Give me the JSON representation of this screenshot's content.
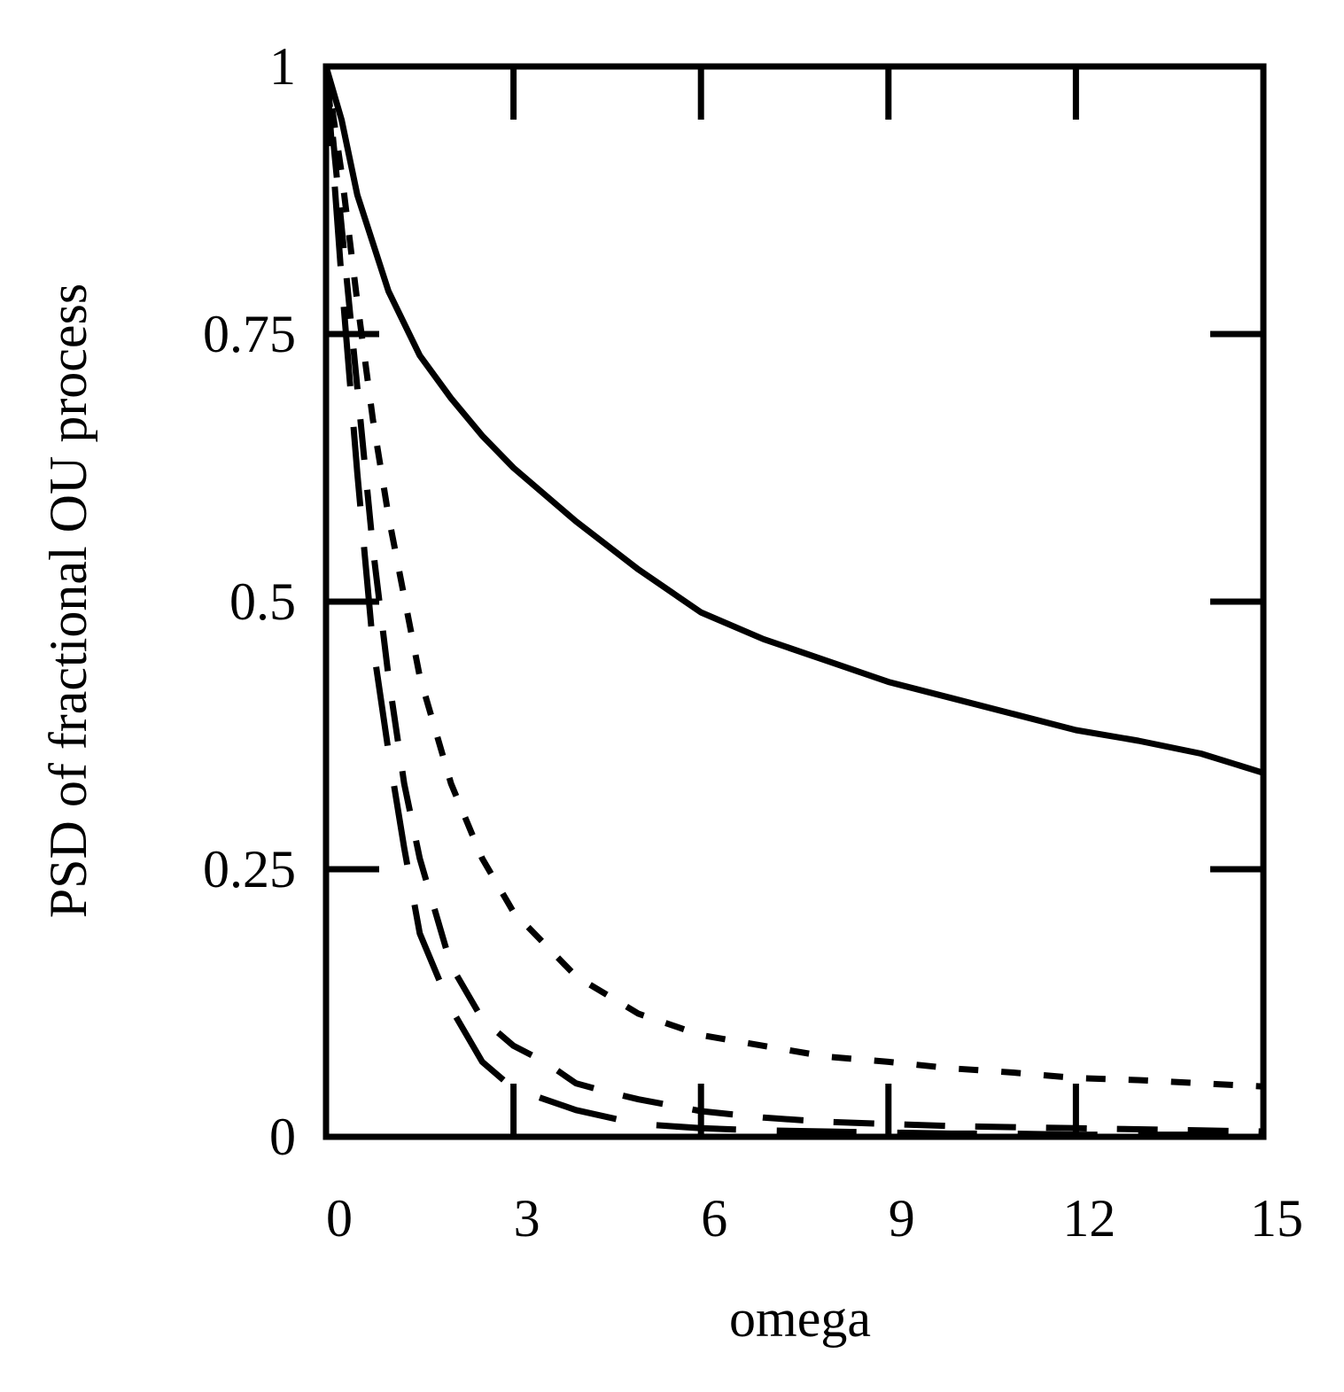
{
  "chart_data": {
    "type": "line",
    "title": "",
    "xlabel": "omega",
    "ylabel": "PSD of fractional OU process",
    "xlim": [
      0,
      15
    ],
    "ylim": [
      0,
      1
    ],
    "x_ticks": [
      0,
      3,
      6,
      9,
      12,
      15
    ],
    "x_tick_labels": [
      "0",
      "3",
      "6",
      "9",
      "12",
      "15"
    ],
    "y_ticks": [
      0,
      0.25,
      0.5,
      0.75,
      1
    ],
    "y_tick_labels": [
      "0",
      "0.25",
      "0.5",
      "0.75",
      "1"
    ],
    "grid": false,
    "legend": "none",
    "line_color": "#000000",
    "series": [
      {
        "name": "solid",
        "style": "solid",
        "x": [
          0,
          0.25,
          0.5,
          1,
          1.5,
          2,
          2.5,
          3,
          4,
          5,
          6,
          7,
          8,
          9,
          10,
          11,
          12,
          13,
          14,
          15
        ],
        "y": [
          1.0,
          0.95,
          0.88,
          0.79,
          0.73,
          0.69,
          0.655,
          0.625,
          0.575,
          0.53,
          0.49,
          0.465,
          0.445,
          0.425,
          0.41,
          0.395,
          0.38,
          0.37,
          0.358,
          0.34
        ]
      },
      {
        "name": "short-dash",
        "style": "short-dash",
        "x": [
          0,
          0.25,
          0.5,
          0.75,
          1,
          1.5,
          2,
          2.5,
          3,
          4,
          5,
          6,
          7,
          8,
          9,
          10,
          11,
          12,
          13,
          14,
          15
        ],
        "y": [
          1.0,
          0.9,
          0.78,
          0.67,
          0.58,
          0.43,
          0.33,
          0.26,
          0.21,
          0.15,
          0.115,
          0.095,
          0.085,
          0.075,
          0.07,
          0.064,
          0.06,
          0.055,
          0.053,
          0.05,
          0.047
        ]
      },
      {
        "name": "medium-dash",
        "style": "medium-dash",
        "x": [
          0,
          0.25,
          0.5,
          0.75,
          1,
          1.25,
          1.5,
          2,
          2.5,
          3,
          3.5,
          4,
          4.5,
          5,
          6,
          7,
          8,
          9,
          10,
          11,
          12,
          13,
          14,
          15
        ],
        "y": [
          1.0,
          0.85,
          0.7,
          0.55,
          0.43,
          0.33,
          0.26,
          0.16,
          0.11,
          0.085,
          0.07,
          0.05,
          0.042,
          0.035,
          0.024,
          0.018,
          0.014,
          0.012,
          0.01,
          0.009,
          0.008,
          0.007,
          0.006,
          0.005
        ]
      },
      {
        "name": "long-dash",
        "style": "long-dash",
        "x": [
          0,
          0.25,
          0.5,
          0.75,
          1,
          1.25,
          1.5,
          2,
          2.5,
          3,
          3.5,
          4,
          5,
          6,
          7,
          8,
          9,
          10,
          11,
          12,
          13,
          14,
          15
        ],
        "y": [
          1.0,
          0.8,
          0.62,
          0.46,
          0.36,
          0.27,
          0.19,
          0.12,
          0.07,
          0.045,
          0.035,
          0.025,
          0.012,
          0.008,
          0.006,
          0.005,
          0.004,
          0.003,
          0.003,
          0.002,
          0.002,
          0.002,
          0.002
        ]
      }
    ]
  }
}
